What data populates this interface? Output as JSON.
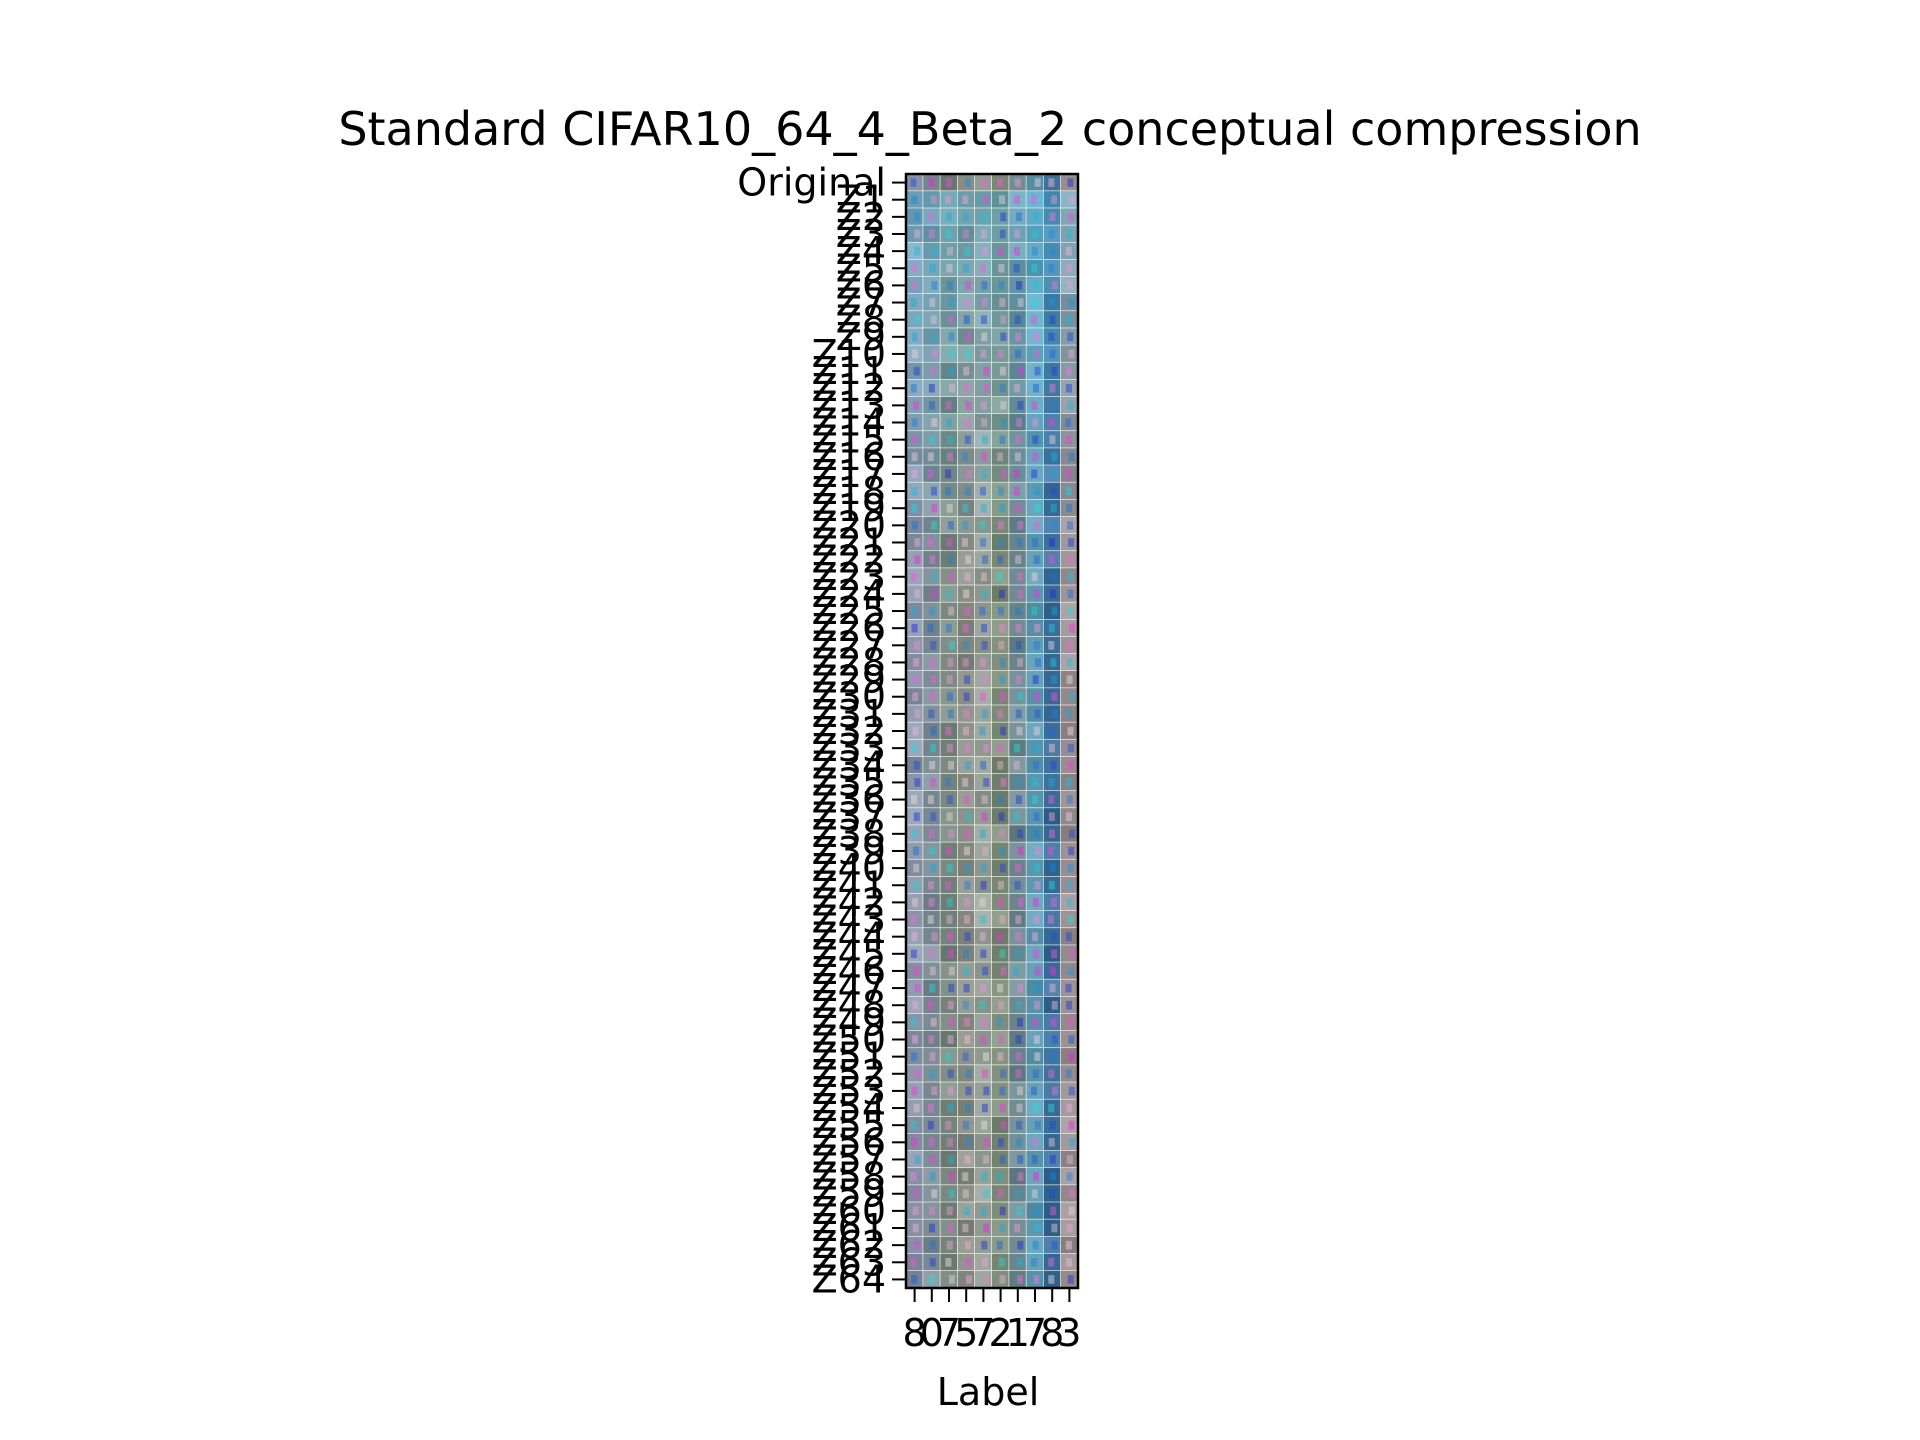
{
  "chart_data": {
    "type": "heatmap",
    "title": "Standard CIFAR10_64_4_Beta_2 conceptual compression",
    "xlabel": "Label",
    "ylabel": "",
    "x_tick_labels": [
      "8",
      "0",
      "7",
      "5",
      "7",
      "2",
      "1",
      "7",
      "8",
      "3"
    ],
    "y_tick_labels": [
      "Original",
      "Z1",
      "Z2",
      "Z3",
      "Z4",
      "Z5",
      "Z6",
      "Z7",
      "Z8",
      "Z9",
      "Z10",
      "Z11",
      "Z12",
      "Z13",
      "Z14",
      "Z15",
      "Z16",
      "Z17",
      "Z18",
      "Z19",
      "Z20",
      "Z21",
      "Z22",
      "Z23",
      "Z24",
      "Z25",
      "Z26",
      "Z27",
      "Z28",
      "Z29",
      "Z30",
      "Z31",
      "Z32",
      "Z33",
      "Z34",
      "Z35",
      "Z36",
      "Z37",
      "Z38",
      "Z39",
      "Z40",
      "Z41",
      "Z42",
      "Z43",
      "Z44",
      "Z45",
      "Z46",
      "Z47",
      "Z48",
      "Z49",
      "Z50",
      "Z51",
      "Z52",
      "Z53",
      "Z54",
      "Z55",
      "Z56",
      "Z57",
      "Z58",
      "Z59",
      "Z60",
      "Z61",
      "Z62",
      "Z63",
      "Z64"
    ],
    "grid": false,
    "legend": "none",
    "column_colors": [
      "#8a96a8",
      "#7e8f97",
      "#7b8a80",
      "#8a8f86",
      "#96a097",
      "#7f8e7a",
      "#6f8a90",
      "#5f9ab0",
      "#3e6f98",
      "#9a8f92"
    ],
    "early_row_color": "#5fb7d6"
  }
}
